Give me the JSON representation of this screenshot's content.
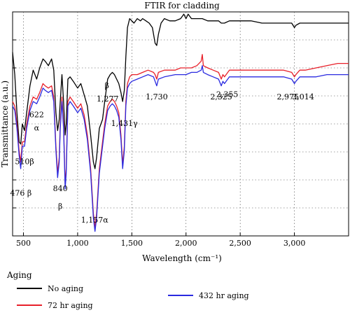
{
  "chart_data": {
    "type": "line",
    "title": "FTIR for cladding",
    "xlabel": "Wavelength (cm⁻¹)",
    "ylabel": "Transmittance (a.u.)",
    "xlim": [
      400,
      3500
    ],
    "x_ticks": [
      {
        "value": 500,
        "label": "500"
      },
      {
        "value": 1000,
        "label": "1,000"
      },
      {
        "value": 1500,
        "label": "1,500"
      },
      {
        "value": 2000,
        "label": "2,000"
      },
      {
        "value": 2500,
        "label": "2,500"
      },
      {
        "value": 3000,
        "label": "3,000"
      }
    ],
    "grid": true,
    "legend_title": "Aging",
    "legend_position": "bottom",
    "series": [
      {
        "name": "No aging",
        "color": "#000000",
        "points": [
          [
            400,
            0.82
          ],
          [
            420,
            0.72
          ],
          [
            440,
            0.55
          ],
          [
            460,
            0.42
          ],
          [
            475,
            0.41
          ],
          [
            490,
            0.5
          ],
          [
            510,
            0.47
          ],
          [
            530,
            0.55
          ],
          [
            560,
            0.67
          ],
          [
            590,
            0.74
          ],
          [
            622,
            0.7
          ],
          [
            650,
            0.75
          ],
          [
            680,
            0.79
          ],
          [
            700,
            0.78
          ],
          [
            730,
            0.76
          ],
          [
            760,
            0.79
          ],
          [
            780,
            0.74
          ],
          [
            800,
            0.55
          ],
          [
            815,
            0.47
          ],
          [
            830,
            0.52
          ],
          [
            840,
            0.6
          ],
          [
            855,
            0.72
          ],
          [
            870,
            0.6
          ],
          [
            885,
            0.45
          ],
          [
            895,
            0.5
          ],
          [
            910,
            0.7
          ],
          [
            930,
            0.71
          ],
          [
            960,
            0.69
          ],
          [
            1000,
            0.66
          ],
          [
            1030,
            0.68
          ],
          [
            1060,
            0.63
          ],
          [
            1090,
            0.58
          ],
          [
            1120,
            0.45
          ],
          [
            1145,
            0.33
          ],
          [
            1160,
            0.3
          ],
          [
            1175,
            0.35
          ],
          [
            1200,
            0.48
          ],
          [
            1230,
            0.52
          ],
          [
            1250,
            0.6
          ],
          [
            1277,
            0.7
          ],
          [
            1300,
            0.72
          ],
          [
            1320,
            0.73
          ],
          [
            1340,
            0.72
          ],
          [
            1360,
            0.7
          ],
          [
            1380,
            0.68
          ],
          [
            1400,
            0.64
          ],
          [
            1415,
            0.6
          ],
          [
            1431,
            0.65
          ],
          [
            1445,
            0.8
          ],
          [
            1460,
            0.93
          ],
          [
            1480,
            0.97
          ],
          [
            1500,
            0.96
          ],
          [
            1520,
            0.95
          ],
          [
            1550,
            0.97
          ],
          [
            1580,
            0.96
          ],
          [
            1600,
            0.97
          ],
          [
            1630,
            0.96
          ],
          [
            1660,
            0.95
          ],
          [
            1690,
            0.93
          ],
          [
            1715,
            0.86
          ],
          [
            1730,
            0.85
          ],
          [
            1745,
            0.9
          ],
          [
            1770,
            0.95
          ],
          [
            1800,
            0.97
          ],
          [
            1850,
            0.96
          ],
          [
            1900,
            0.96
          ],
          [
            1950,
            0.97
          ],
          [
            1980,
            0.99
          ],
          [
            2000,
            0.97
          ],
          [
            2020,
            0.99
          ],
          [
            2050,
            0.97
          ],
          [
            2100,
            0.97
          ],
          [
            2150,
            0.97
          ],
          [
            2200,
            0.96
          ],
          [
            2250,
            0.96
          ],
          [
            2300,
            0.96
          ],
          [
            2325,
            0.95
          ],
          [
            2355,
            0.95
          ],
          [
            2400,
            0.96
          ],
          [
            2500,
            0.96
          ],
          [
            2600,
            0.96
          ],
          [
            2700,
            0.95
          ],
          [
            2800,
            0.95
          ],
          [
            2900,
            0.95
          ],
          [
            2975,
            0.95
          ],
          [
            3000,
            0.93
          ],
          [
            3014,
            0.94
          ],
          [
            3050,
            0.95
          ],
          [
            3100,
            0.95
          ],
          [
            3200,
            0.95
          ],
          [
            3300,
            0.95
          ],
          [
            3400,
            0.95
          ],
          [
            3500,
            0.95
          ]
        ]
      },
      {
        "name": "72 hr aging",
        "color": "#e8202a",
        "points": [
          [
            400,
            0.6
          ],
          [
            420,
            0.58
          ],
          [
            440,
            0.5
          ],
          [
            460,
            0.38
          ],
          [
            475,
            0.33
          ],
          [
            490,
            0.42
          ],
          [
            510,
            0.42
          ],
          [
            530,
            0.5
          ],
          [
            560,
            0.58
          ],
          [
            590,
            0.62
          ],
          [
            622,
            0.61
          ],
          [
            650,
            0.64
          ],
          [
            680,
            0.68
          ],
          [
            700,
            0.67
          ],
          [
            730,
            0.66
          ],
          [
            760,
            0.67
          ],
          [
            780,
            0.62
          ],
          [
            800,
            0.4
          ],
          [
            815,
            0.28
          ],
          [
            830,
            0.35
          ],
          [
            840,
            0.5
          ],
          [
            855,
            0.62
          ],
          [
            870,
            0.5
          ],
          [
            885,
            0.23
          ],
          [
            895,
            0.3
          ],
          [
            910,
            0.6
          ],
          [
            930,
            0.62
          ],
          [
            960,
            0.6
          ],
          [
            1000,
            0.57
          ],
          [
            1030,
            0.59
          ],
          [
            1060,
            0.54
          ],
          [
            1090,
            0.45
          ],
          [
            1120,
            0.3
          ],
          [
            1145,
            0.1
          ],
          [
            1160,
            0.04
          ],
          [
            1175,
            0.1
          ],
          [
            1200,
            0.3
          ],
          [
            1230,
            0.42
          ],
          [
            1250,
            0.5
          ],
          [
            1277,
            0.58
          ],
          [
            1300,
            0.6
          ],
          [
            1320,
            0.61
          ],
          [
            1340,
            0.6
          ],
          [
            1360,
            0.58
          ],
          [
            1380,
            0.55
          ],
          [
            1400,
            0.45
          ],
          [
            1415,
            0.32
          ],
          [
            1431,
            0.4
          ],
          [
            1445,
            0.6
          ],
          [
            1460,
            0.68
          ],
          [
            1480,
            0.71
          ],
          [
            1500,
            0.72
          ],
          [
            1550,
            0.72
          ],
          [
            1600,
            0.73
          ],
          [
            1650,
            0.74
          ],
          [
            1700,
            0.73
          ],
          [
            1715,
            0.72
          ],
          [
            1730,
            0.7
          ],
          [
            1745,
            0.73
          ],
          [
            1800,
            0.74
          ],
          [
            1900,
            0.74
          ],
          [
            1950,
            0.75
          ],
          [
            2000,
            0.75
          ],
          [
            2050,
            0.75
          ],
          [
            2100,
            0.76
          ],
          [
            2140,
            0.78
          ],
          [
            2150,
            0.81
          ],
          [
            2160,
            0.76
          ],
          [
            2200,
            0.75
          ],
          [
            2250,
            0.74
          ],
          [
            2300,
            0.73
          ],
          [
            2325,
            0.7
          ],
          [
            2340,
            0.72
          ],
          [
            2355,
            0.71
          ],
          [
            2400,
            0.74
          ],
          [
            2500,
            0.74
          ],
          [
            2600,
            0.74
          ],
          [
            2700,
            0.74
          ],
          [
            2800,
            0.74
          ],
          [
            2900,
            0.74
          ],
          [
            2975,
            0.73
          ],
          [
            3000,
            0.71
          ],
          [
            3014,
            0.72
          ],
          [
            3050,
            0.74
          ],
          [
            3100,
            0.74
          ],
          [
            3200,
            0.75
          ],
          [
            3300,
            0.76
          ],
          [
            3400,
            0.77
          ],
          [
            3500,
            0.77
          ]
        ]
      },
      {
        "name": "432 hr aging",
        "color": "#2a2ae0",
        "points": [
          [
            400,
            0.58
          ],
          [
            420,
            0.56
          ],
          [
            440,
            0.48
          ],
          [
            460,
            0.36
          ],
          [
            475,
            0.3
          ],
          [
            490,
            0.4
          ],
          [
            510,
            0.4
          ],
          [
            530,
            0.48
          ],
          [
            560,
            0.56
          ],
          [
            590,
            0.6
          ],
          [
            622,
            0.59
          ],
          [
            650,
            0.62
          ],
          [
            680,
            0.66
          ],
          [
            700,
            0.65
          ],
          [
            730,
            0.64
          ],
          [
            760,
            0.65
          ],
          [
            780,
            0.6
          ],
          [
            800,
            0.38
          ],
          [
            815,
            0.26
          ],
          [
            830,
            0.33
          ],
          [
            840,
            0.48
          ],
          [
            855,
            0.6
          ],
          [
            870,
            0.48
          ],
          [
            885,
            0.21
          ],
          [
            895,
            0.28
          ],
          [
            910,
            0.58
          ],
          [
            930,
            0.6
          ],
          [
            960,
            0.58
          ],
          [
            1000,
            0.55
          ],
          [
            1030,
            0.57
          ],
          [
            1060,
            0.52
          ],
          [
            1090,
            0.43
          ],
          [
            1120,
            0.28
          ],
          [
            1145,
            0.08
          ],
          [
            1160,
            0.02
          ],
          [
            1175,
            0.08
          ],
          [
            1200,
            0.28
          ],
          [
            1230,
            0.4
          ],
          [
            1250,
            0.48
          ],
          [
            1277,
            0.56
          ],
          [
            1300,
            0.58
          ],
          [
            1320,
            0.59
          ],
          [
            1340,
            0.58
          ],
          [
            1360,
            0.56
          ],
          [
            1380,
            0.53
          ],
          [
            1400,
            0.43
          ],
          [
            1415,
            0.3
          ],
          [
            1431,
            0.38
          ],
          [
            1445,
            0.58
          ],
          [
            1460,
            0.66
          ],
          [
            1480,
            0.68
          ],
          [
            1500,
            0.69
          ],
          [
            1550,
            0.7
          ],
          [
            1600,
            0.71
          ],
          [
            1650,
            0.72
          ],
          [
            1700,
            0.71
          ],
          [
            1715,
            0.69
          ],
          [
            1730,
            0.67
          ],
          [
            1745,
            0.7
          ],
          [
            1800,
            0.71
          ],
          [
            1900,
            0.72
          ],
          [
            1950,
            0.72
          ],
          [
            2000,
            0.72
          ],
          [
            2050,
            0.73
          ],
          [
            2100,
            0.73
          ],
          [
            2140,
            0.74
          ],
          [
            2150,
            0.76
          ],
          [
            2160,
            0.73
          ],
          [
            2200,
            0.72
          ],
          [
            2250,
            0.71
          ],
          [
            2300,
            0.7
          ],
          [
            2325,
            0.67
          ],
          [
            2340,
            0.69
          ],
          [
            2355,
            0.68
          ],
          [
            2400,
            0.71
          ],
          [
            2500,
            0.71
          ],
          [
            2600,
            0.71
          ],
          [
            2700,
            0.71
          ],
          [
            2800,
            0.71
          ],
          [
            2900,
            0.71
          ],
          [
            2975,
            0.7
          ],
          [
            3000,
            0.68
          ],
          [
            3014,
            0.69
          ],
          [
            3050,
            0.71
          ],
          [
            3100,
            0.71
          ],
          [
            3200,
            0.71
          ],
          [
            3300,
            0.72
          ],
          [
            3400,
            0.72
          ],
          [
            3500,
            0.72
          ]
        ]
      }
    ],
    "annotations": [
      {
        "text": "622",
        "x": 622,
        "y": 0.53
      },
      {
        "text": "α",
        "x": 622,
        "y": 0.47
      },
      {
        "text": "510β",
        "x": 510,
        "y": 0.32
      },
      {
        "text": "476 β",
        "x": 476,
        "y": 0.18
      },
      {
        "text": "840",
        "x": 840,
        "y": 0.2
      },
      {
        "text": "β",
        "x": 840,
        "y": 0.12
      },
      {
        "text": "1,157α",
        "x": 1157,
        "y": 0.06
      },
      {
        "text": "β",
        "x": 1270,
        "y": 0.66
      },
      {
        "text": "1,277",
        "x": 1277,
        "y": 0.6
      },
      {
        "text": "1,431γ",
        "x": 1431,
        "y": 0.49
      },
      {
        "text": "1,730",
        "x": 1730,
        "y": 0.61
      },
      {
        "text": "2,325",
        "x": 2325,
        "y": 0.61
      },
      {
        "text": "2,355",
        "x": 2380,
        "y": 0.62
      },
      {
        "text": "2,975",
        "x": 2940,
        "y": 0.61
      },
      {
        "text": "3,014",
        "x": 3080,
        "y": 0.61
      }
    ]
  }
}
